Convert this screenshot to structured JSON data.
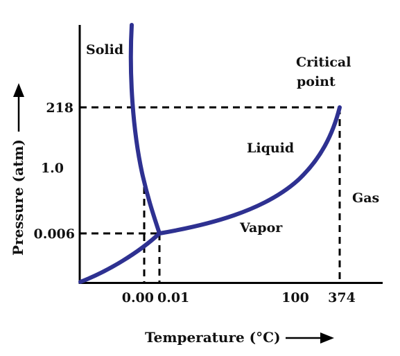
{
  "colors": {
    "curve": "#2e3191",
    "axis": "#000000",
    "text": "#111111",
    "background": "#ffffff"
  },
  "axes": {
    "x_title": "Temperature (°C)",
    "y_title": "Pressure (atm)",
    "x_ticks": [
      "0.00",
      "0.01",
      "100",
      "374"
    ],
    "y_ticks": [
      "218",
      "1.0",
      "0.006"
    ]
  },
  "regions": {
    "solid": "Solid",
    "liquid": "Liquid",
    "vapor": "Vapor",
    "gas": "Gas"
  },
  "critical_point": {
    "line1": "Critical",
    "line2": "point"
  },
  "icons": {
    "y_arrow": "arrow-up-icon",
    "x_arrow": "arrow-right-icon"
  }
}
